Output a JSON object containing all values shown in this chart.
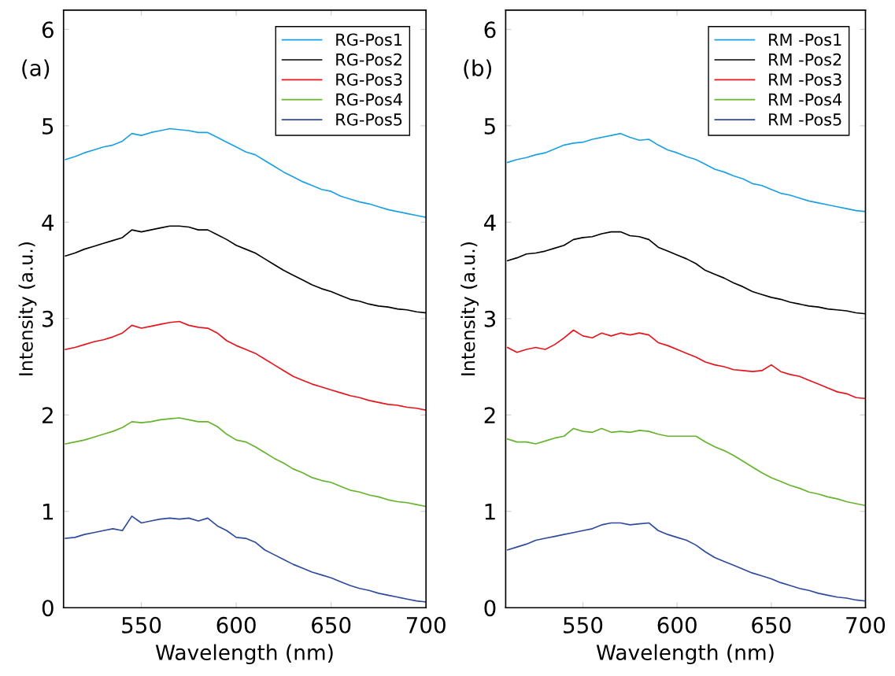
{
  "chart_data": [
    {
      "type": "line",
      "xlabel": "Wavelength (nm)",
      "ylabel": "Intensity (a.u.)",
      "annotations": [
        "(a)"
      ],
      "x": [
        510,
        515,
        520,
        525,
        530,
        535,
        540,
        545,
        550,
        555,
        560,
        565,
        570,
        575,
        580,
        585,
        590,
        595,
        600,
        605,
        610,
        615,
        620,
        625,
        630,
        635,
        640,
        645,
        650,
        655,
        660,
        665,
        670,
        675,
        680,
        685,
        690,
        695,
        700
      ],
      "xlim": [
        509,
        700
      ],
      "xticks": [
        550,
        600,
        650,
        700
      ],
      "ylim": [
        0,
        6.2
      ],
      "yticks": [
        0,
        1,
        2,
        3,
        4,
        5,
        6
      ],
      "legend": "top right",
      "grid": false,
      "series": [
        {
          "name": "RG-Pos1",
          "color": "#1ba1e2",
          "values": [
            4.65,
            4.68,
            4.72,
            4.75,
            4.78,
            4.8,
            4.84,
            4.92,
            4.9,
            4.93,
            4.95,
            4.97,
            4.96,
            4.95,
            4.93,
            4.93,
            4.88,
            4.83,
            4.78,
            4.73,
            4.7,
            4.64,
            4.58,
            4.52,
            4.47,
            4.42,
            4.38,
            4.34,
            4.32,
            4.27,
            4.24,
            4.21,
            4.19,
            4.16,
            4.13,
            4.11,
            4.09,
            4.07,
            4.05
          ]
        },
        {
          "name": "RG-Pos2",
          "color": "#000000",
          "values": [
            3.65,
            3.68,
            3.72,
            3.75,
            3.78,
            3.81,
            3.84,
            3.92,
            3.9,
            3.92,
            3.94,
            3.96,
            3.96,
            3.95,
            3.92,
            3.92,
            3.87,
            3.82,
            3.76,
            3.72,
            3.68,
            3.62,
            3.56,
            3.5,
            3.45,
            3.4,
            3.35,
            3.31,
            3.28,
            3.24,
            3.2,
            3.18,
            3.15,
            3.13,
            3.12,
            3.1,
            3.09,
            3.07,
            3.06
          ]
        },
        {
          "name": "RG-Pos3",
          "color": "#e8141c",
          "values": [
            2.68,
            2.7,
            2.73,
            2.76,
            2.78,
            2.81,
            2.85,
            2.93,
            2.9,
            2.92,
            2.94,
            2.96,
            2.97,
            2.93,
            2.91,
            2.9,
            2.85,
            2.77,
            2.72,
            2.68,
            2.64,
            2.58,
            2.52,
            2.46,
            2.4,
            2.36,
            2.32,
            2.29,
            2.26,
            2.23,
            2.2,
            2.18,
            2.15,
            2.13,
            2.11,
            2.1,
            2.08,
            2.07,
            2.05
          ]
        },
        {
          "name": "RG-Pos4",
          "color": "#66b32e",
          "values": [
            1.7,
            1.72,
            1.74,
            1.77,
            1.8,
            1.83,
            1.87,
            1.93,
            1.92,
            1.93,
            1.95,
            1.96,
            1.97,
            1.95,
            1.93,
            1.93,
            1.88,
            1.8,
            1.74,
            1.72,
            1.67,
            1.61,
            1.55,
            1.5,
            1.44,
            1.4,
            1.35,
            1.32,
            1.3,
            1.26,
            1.22,
            1.2,
            1.17,
            1.15,
            1.12,
            1.1,
            1.09,
            1.07,
            1.05
          ]
        },
        {
          "name": "RG-Pos5",
          "color": "#2e4a9c",
          "values": [
            0.72,
            0.73,
            0.76,
            0.78,
            0.8,
            0.82,
            0.8,
            0.95,
            0.88,
            0.9,
            0.92,
            0.93,
            0.92,
            0.93,
            0.9,
            0.93,
            0.85,
            0.8,
            0.73,
            0.72,
            0.68,
            0.6,
            0.55,
            0.5,
            0.45,
            0.41,
            0.37,
            0.34,
            0.31,
            0.27,
            0.23,
            0.2,
            0.18,
            0.15,
            0.13,
            0.11,
            0.09,
            0.07,
            0.06
          ]
        }
      ]
    },
    {
      "type": "line",
      "xlabel": "Wavelength (nm)",
      "ylabel": "Intensity (a.u.)",
      "annotations": [
        "(b)"
      ],
      "x": [
        510,
        515,
        520,
        525,
        530,
        535,
        540,
        545,
        550,
        555,
        560,
        565,
        570,
        575,
        580,
        585,
        590,
        595,
        600,
        605,
        610,
        615,
        620,
        625,
        630,
        635,
        640,
        645,
        650,
        655,
        660,
        665,
        670,
        675,
        680,
        685,
        690,
        695,
        700
      ],
      "xlim": [
        509,
        700
      ],
      "xticks": [
        550,
        600,
        650,
        700
      ],
      "ylim": [
        0,
        6.2
      ],
      "yticks": [
        0,
        1,
        2,
        3,
        4,
        5,
        6
      ],
      "legend": "top right",
      "grid": false,
      "series": [
        {
          "name": "RM -Pos1",
          "color": "#1ba1e2",
          "values": [
            4.62,
            4.65,
            4.67,
            4.7,
            4.72,
            4.76,
            4.8,
            4.82,
            4.83,
            4.86,
            4.88,
            4.9,
            4.92,
            4.88,
            4.85,
            4.86,
            4.8,
            4.75,
            4.72,
            4.68,
            4.65,
            4.6,
            4.55,
            4.52,
            4.48,
            4.45,
            4.4,
            4.38,
            4.34,
            4.3,
            4.28,
            4.25,
            4.22,
            4.2,
            4.18,
            4.16,
            4.14,
            4.12,
            4.11
          ]
        },
        {
          "name": "RM -Pos2",
          "color": "#000000",
          "values": [
            3.6,
            3.63,
            3.67,
            3.68,
            3.7,
            3.73,
            3.76,
            3.82,
            3.84,
            3.85,
            3.88,
            3.9,
            3.9,
            3.86,
            3.85,
            3.82,
            3.74,
            3.7,
            3.66,
            3.62,
            3.57,
            3.5,
            3.46,
            3.42,
            3.37,
            3.33,
            3.28,
            3.25,
            3.22,
            3.2,
            3.17,
            3.15,
            3.13,
            3.12,
            3.1,
            3.09,
            3.08,
            3.06,
            3.05
          ]
        },
        {
          "name": "RM -Pos3",
          "color": "#e8141c",
          "values": [
            2.7,
            2.65,
            2.68,
            2.7,
            2.68,
            2.73,
            2.8,
            2.88,
            2.82,
            2.8,
            2.85,
            2.82,
            2.85,
            2.83,
            2.85,
            2.83,
            2.75,
            2.72,
            2.68,
            2.64,
            2.6,
            2.55,
            2.52,
            2.5,
            2.47,
            2.46,
            2.45,
            2.46,
            2.52,
            2.45,
            2.42,
            2.4,
            2.36,
            2.32,
            2.28,
            2.24,
            2.22,
            2.18,
            2.17
          ]
        },
        {
          "name": "RM -Pos4",
          "color": "#66b32e",
          "values": [
            1.75,
            1.72,
            1.72,
            1.7,
            1.73,
            1.76,
            1.78,
            1.86,
            1.83,
            1.82,
            1.86,
            1.82,
            1.83,
            1.82,
            1.84,
            1.83,
            1.8,
            1.78,
            1.78,
            1.78,
            1.78,
            1.72,
            1.67,
            1.63,
            1.58,
            1.52,
            1.46,
            1.4,
            1.35,
            1.31,
            1.27,
            1.24,
            1.2,
            1.18,
            1.15,
            1.13,
            1.1,
            1.08,
            1.06
          ]
        },
        {
          "name": "RM -Pos5",
          "color": "#2e4a9c",
          "values": [
            0.6,
            0.63,
            0.66,
            0.7,
            0.72,
            0.74,
            0.76,
            0.78,
            0.8,
            0.82,
            0.86,
            0.88,
            0.88,
            0.86,
            0.87,
            0.88,
            0.8,
            0.76,
            0.73,
            0.7,
            0.65,
            0.58,
            0.52,
            0.48,
            0.44,
            0.4,
            0.36,
            0.33,
            0.3,
            0.26,
            0.23,
            0.2,
            0.18,
            0.15,
            0.13,
            0.11,
            0.1,
            0.08,
            0.07
          ]
        }
      ]
    }
  ]
}
